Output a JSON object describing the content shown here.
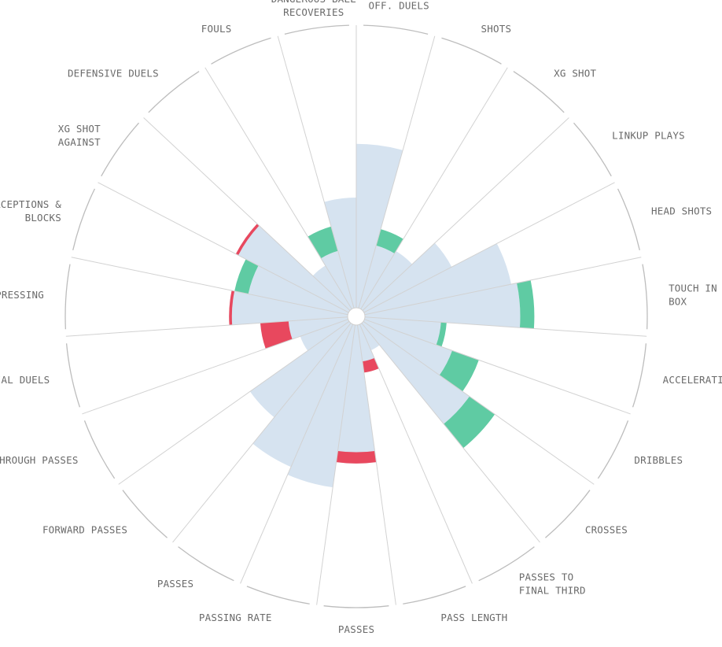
{
  "chart_data": {
    "type": "polar-bar",
    "title": "",
    "scale_max": 100,
    "colors": {
      "base": "#d6e3f0",
      "above": "#5fcba3",
      "below": "#e8485e",
      "spoke": "#d2d2d2",
      "frame": "#bdbdbd",
      "label": "#6a6a6a"
    },
    "categories": [
      {
        "label": "OFF. DUELS",
        "value": 58,
        "delta": 0
      },
      {
        "label": "SHOTS",
        "value": 23,
        "delta": 6
      },
      {
        "label": "XG SHOT",
        "value": 24,
        "delta": 0
      },
      {
        "label": "LINKUP PLAYS",
        "value": 35,
        "delta": 0
      },
      {
        "label": "HEAD SHOTS",
        "value": 53,
        "delta": 0
      },
      {
        "label": "TOUCH IN BOX",
        "value": 55,
        "delta": 5
      },
      {
        "label": "ACCELERATIONS",
        "value": 27,
        "delta": 2
      },
      {
        "label": "DRIBBLES",
        "value": 33,
        "delta": 10
      },
      {
        "label": "CROSSES",
        "value": 46,
        "delta": 11
      },
      {
        "label": "PASSES TO FINAL THIRD",
        "value": 10,
        "delta": 0
      },
      {
        "label": "PASS LENGTH",
        "value": 17,
        "delta": -4
      },
      {
        "label": "PASSES",
        "value": 49,
        "delta": -4
      },
      {
        "label": "PASSING RATE",
        "value": 58,
        "delta": 0
      },
      {
        "label": "PASSES",
        "value": 55,
        "delta": 0
      },
      {
        "label": "FORWARD PASSES",
        "value": 43,
        "delta": 0
      },
      {
        "label": "THROUGH PASSES",
        "value": 18,
        "delta": 0
      },
      {
        "label": "AERIAL DUELS",
        "value": 31,
        "delta": -10
      },
      {
        "label": "PRESSING",
        "value": 42,
        "delta": -1
      },
      {
        "label": "INTERCEPTIONS & BLOCKS",
        "value": 36,
        "delta": 5
      },
      {
        "label": "XG SHOT AGAINST",
        "value": 45,
        "delta": -1
      },
      {
        "label": "DEFENSIVE DUELS",
        "value": 18,
        "delta": 0
      },
      {
        "label": "FOULS",
        "value": 21,
        "delta": 9
      },
      {
        "label": "DANGEROUS BALL RECOVERIES",
        "value": 39,
        "delta": 0
      }
    ],
    "label_lines": [
      [
        "OFF. DUELS"
      ],
      [
        "SHOTS"
      ],
      [
        "XG SHOT"
      ],
      [
        "LINKUP PLAYS"
      ],
      [
        "HEAD SHOTS"
      ],
      [
        "TOUCH IN",
        "BOX"
      ],
      [
        "ACCELERATIONS"
      ],
      [
        "DRIBBLES"
      ],
      [
        "CROSSES"
      ],
      [
        "PASSES TO",
        "FINAL THIRD"
      ],
      [
        "PASS LENGTH"
      ],
      [
        "PASSES"
      ],
      [
        "PASSING RATE"
      ],
      [
        "PASSES"
      ],
      [
        "FORWARD PASSES"
      ],
      [
        "THROUGH PASSES"
      ],
      [
        "AERIAL DUELS"
      ],
      [
        "PRESSING"
      ],
      [
        "INTERCEPTIONS &",
        "BLOCKS"
      ],
      [
        "XG SHOT",
        "AGAINST"
      ],
      [
        "DEFENSIVE DUELS"
      ],
      [
        "FOULS"
      ],
      [
        "DANGEROUS BALL",
        "RECOVERIES"
      ]
    ]
  }
}
